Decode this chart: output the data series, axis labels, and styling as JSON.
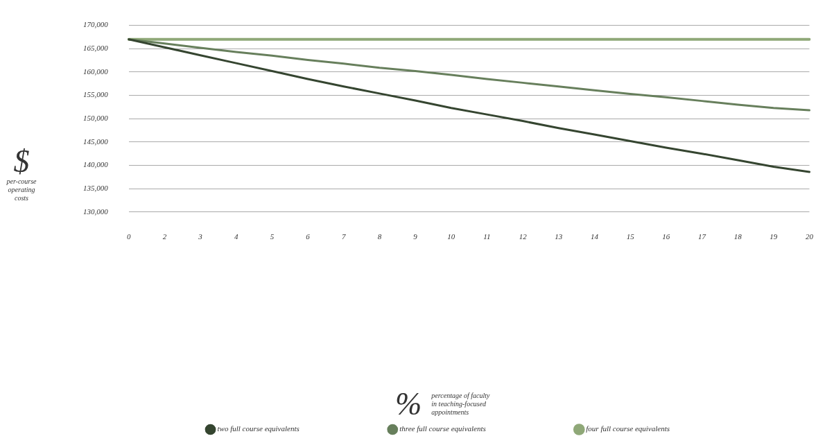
{
  "chart_data": {
    "type": "line",
    "xlabel": "%\npercentage of faculty\nin teaching-focused\nappointments",
    "ylabel": "$\nper-course\noperating\ncosts",
    "categories": [
      "0",
      "2",
      "3",
      "4",
      "5",
      "6",
      "7",
      "8",
      "9",
      "10",
      "11",
      "12",
      "13",
      "14",
      "15",
      "16",
      "17",
      "18",
      "19",
      "20"
    ],
    "series": [
      {
        "name": "two full course equivalents",
        "color": "#354530",
        "values": [
          167000,
          165300,
          163600,
          161900,
          160200,
          158500,
          156900,
          155400,
          153900,
          152300,
          150900,
          149500,
          148000,
          146600,
          145200,
          143800,
          142500,
          141100,
          139700,
          138600
        ]
      },
      {
        "name": "three full course equivalents",
        "color": "#677f5c",
        "values": [
          167000,
          166100,
          165200,
          164300,
          163500,
          162600,
          161800,
          160900,
          160200,
          159400,
          158500,
          157700,
          156900,
          156100,
          155300,
          154600,
          153800,
          153000,
          152300,
          151800
        ]
      },
      {
        "name": "four full course equivalents",
        "color": "#8fa878",
        "values": [
          167000,
          167000,
          167000,
          167000,
          167000,
          167000,
          167000,
          167000,
          167000,
          167000,
          167000,
          167000,
          167000,
          167000,
          167000,
          167000,
          167000,
          167000,
          167000,
          167000
        ]
      }
    ],
    "ylim": [
      130000,
      170000
    ],
    "yticks": [
      {
        "value": 130000,
        "label": "130,000"
      },
      {
        "value": 135000,
        "label": "135,000"
      },
      {
        "value": 140000,
        "label": "140,000"
      },
      {
        "value": 145000,
        "label": "145,000"
      },
      {
        "value": 150000,
        "label": "150,000"
      },
      {
        "value": 155000,
        "label": "155,000"
      },
      {
        "value": 160000,
        "label": "160,000"
      },
      {
        "value": 165000,
        "label": "165,000"
      },
      {
        "value": 170000,
        "label": "170,000"
      }
    ],
    "grid": "y",
    "legend": "bottom",
    "marker": "none",
    "line_style": "solid"
  }
}
